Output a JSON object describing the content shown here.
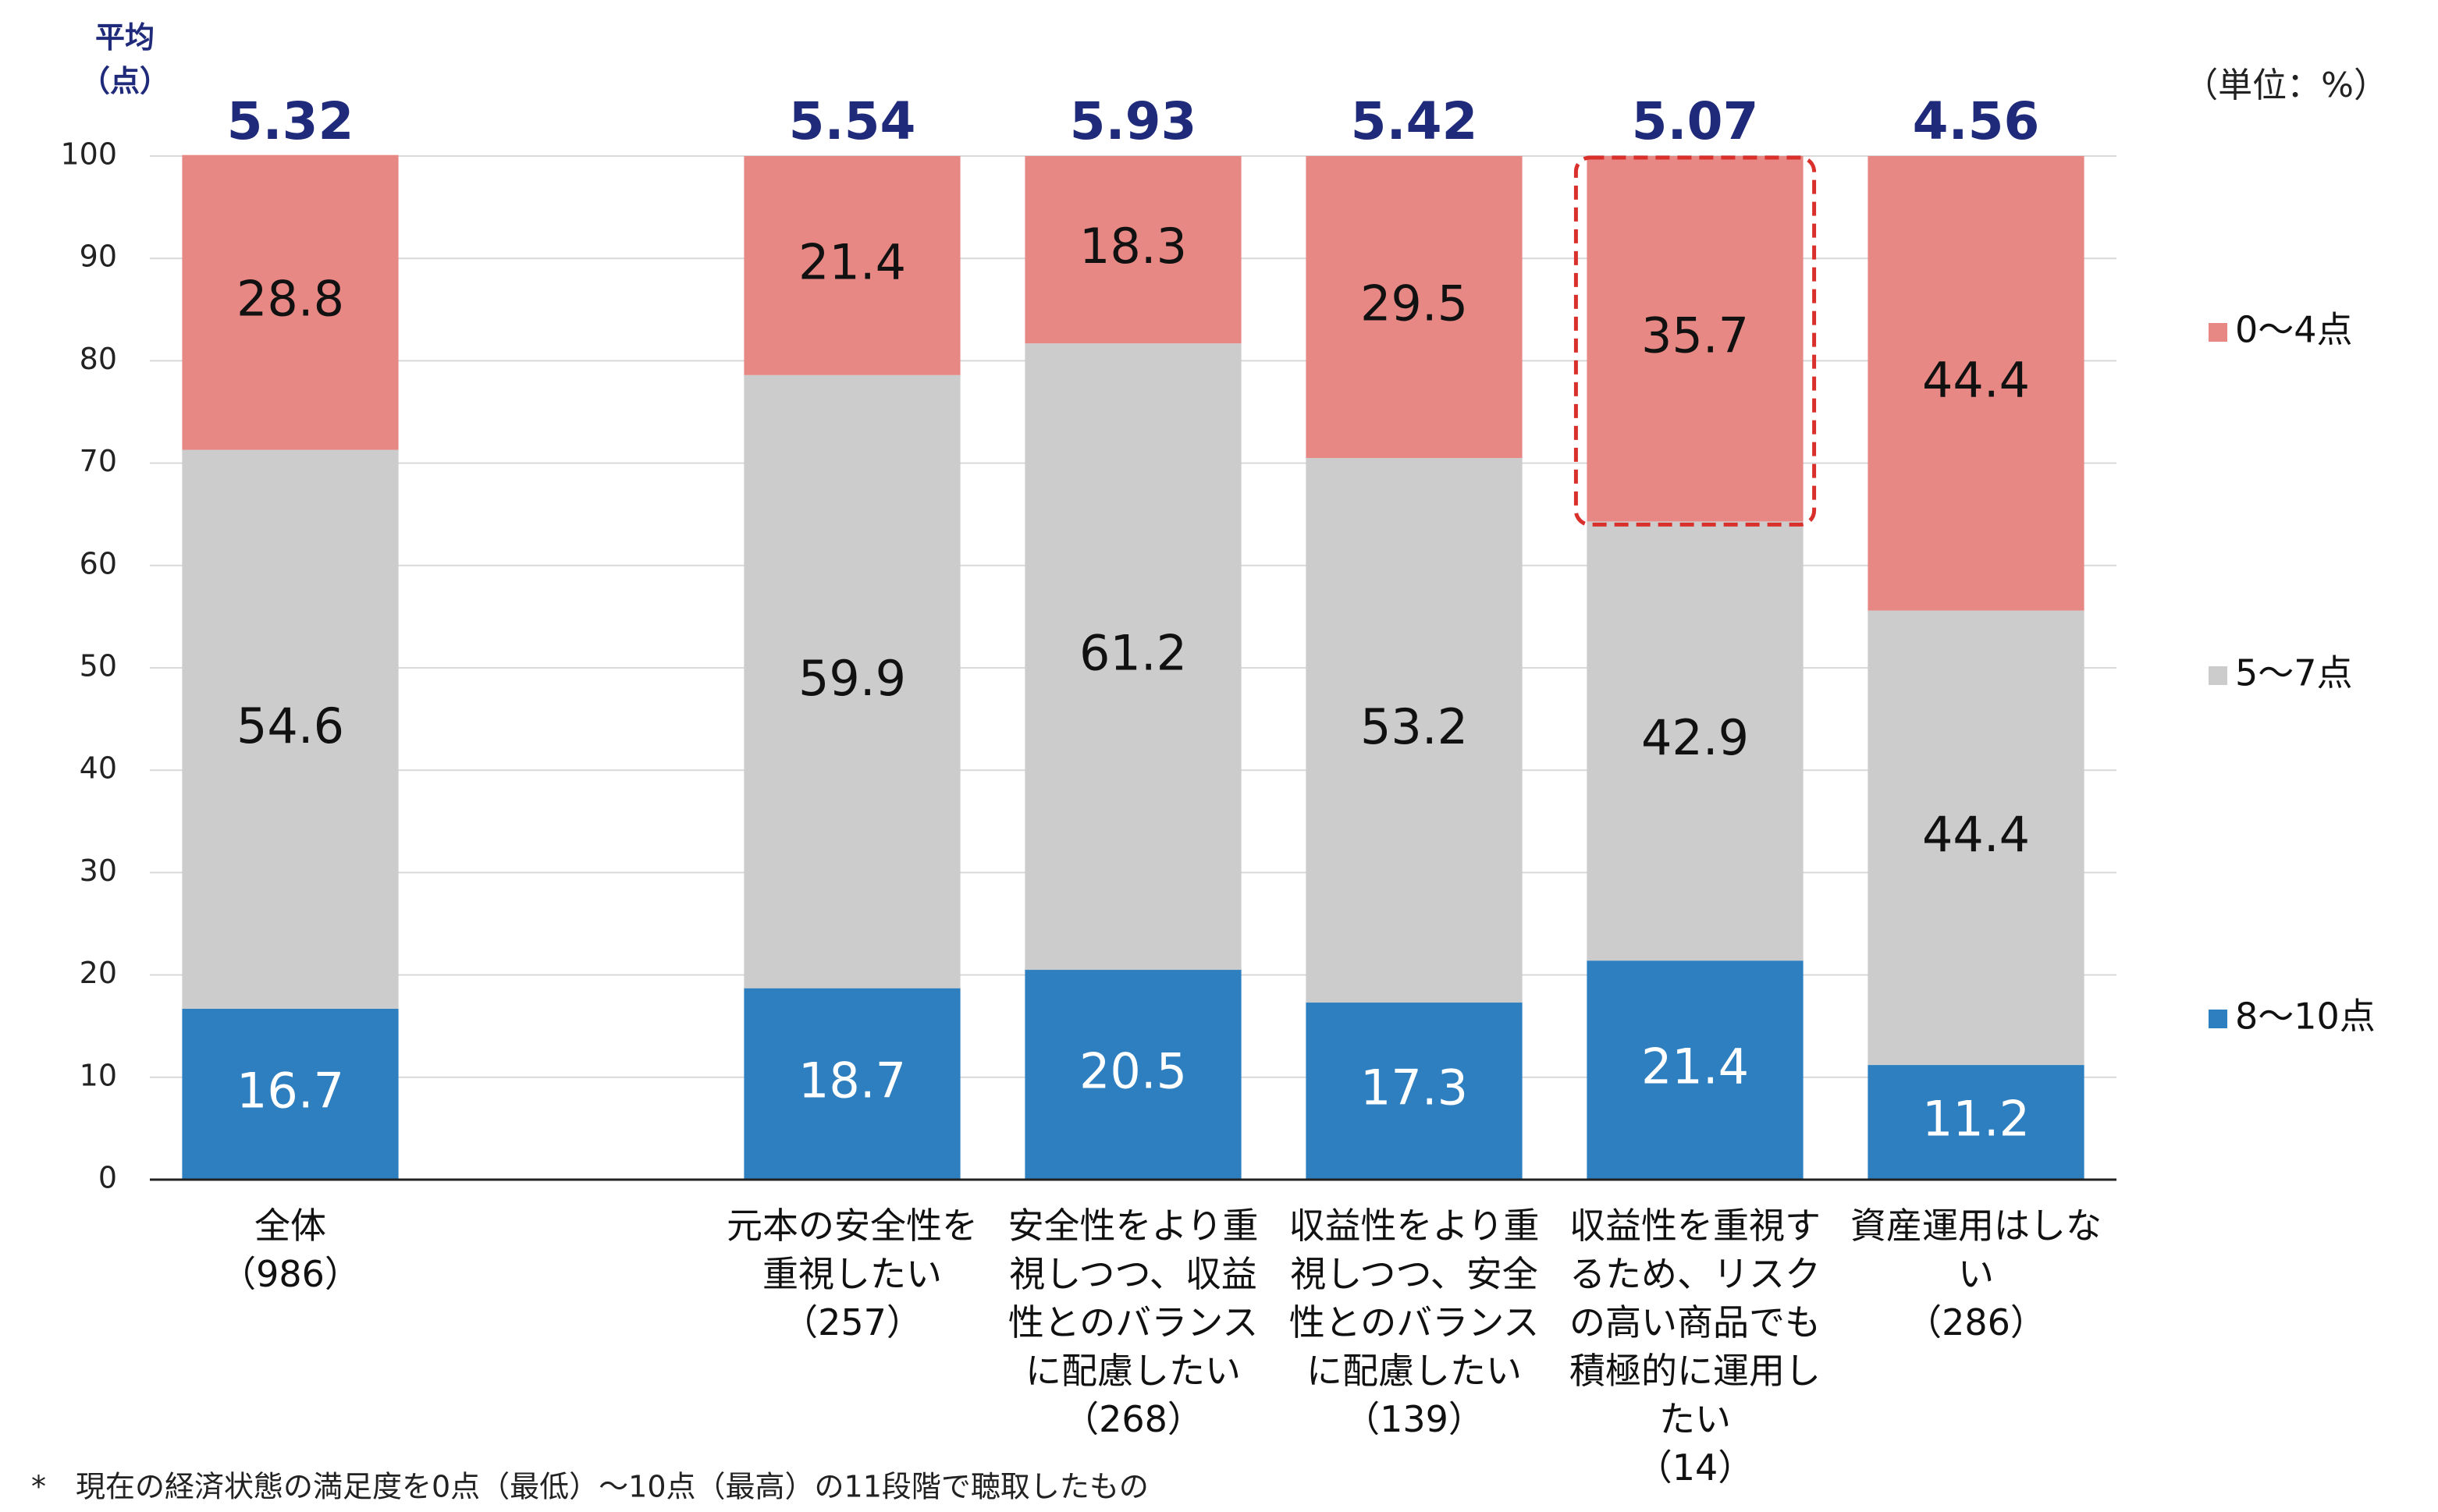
{
  "chart_data": {
    "type": "stacked-bar",
    "average_label": "平均\n（点）",
    "unit_label": "（単位：%）",
    "footnote": "*　現在の経済状態の満足度を0点（最低）〜10点（最高）の11段階で聴取したもの",
    "categories": [
      "全体\n（986）",
      null,
      "元本の安全性を\n重視したい\n（257）",
      "安全性をより重\n視しつつ、収益\n性とのバランス\nに配慮したい\n（268）",
      "収益性をより重\n視しつつ、安全\n性とのバランス\nに配慮したい\n（139）",
      "収益性を重視す\nるため、リスク\nの高い商品でも\n積極的に運用し\nたい\n（14）",
      "資産運用はしな\nい\n（286）"
    ],
    "averages": [
      5.32,
      null,
      5.54,
      5.93,
      5.42,
      5.07,
      4.56
    ],
    "series": [
      {
        "name": "8〜10点",
        "color": "#2e7fc0",
        "values": [
          16.7,
          null,
          18.7,
          20.5,
          17.3,
          21.4,
          11.2
        ]
      },
      {
        "name": "5〜7点",
        "color": "#cccccc",
        "values": [
          54.6,
          null,
          59.9,
          61.2,
          53.2,
          42.9,
          44.4
        ]
      },
      {
        "name": "0〜4点",
        "color": "#e88884",
        "values": [
          28.8,
          null,
          21.4,
          18.3,
          29.5,
          35.7,
          44.4
        ]
      }
    ],
    "ylim": [
      0,
      100
    ],
    "yticks": [
      0,
      10,
      20,
      30,
      40,
      50,
      60,
      70,
      80,
      90,
      100
    ],
    "grid": true
  }
}
